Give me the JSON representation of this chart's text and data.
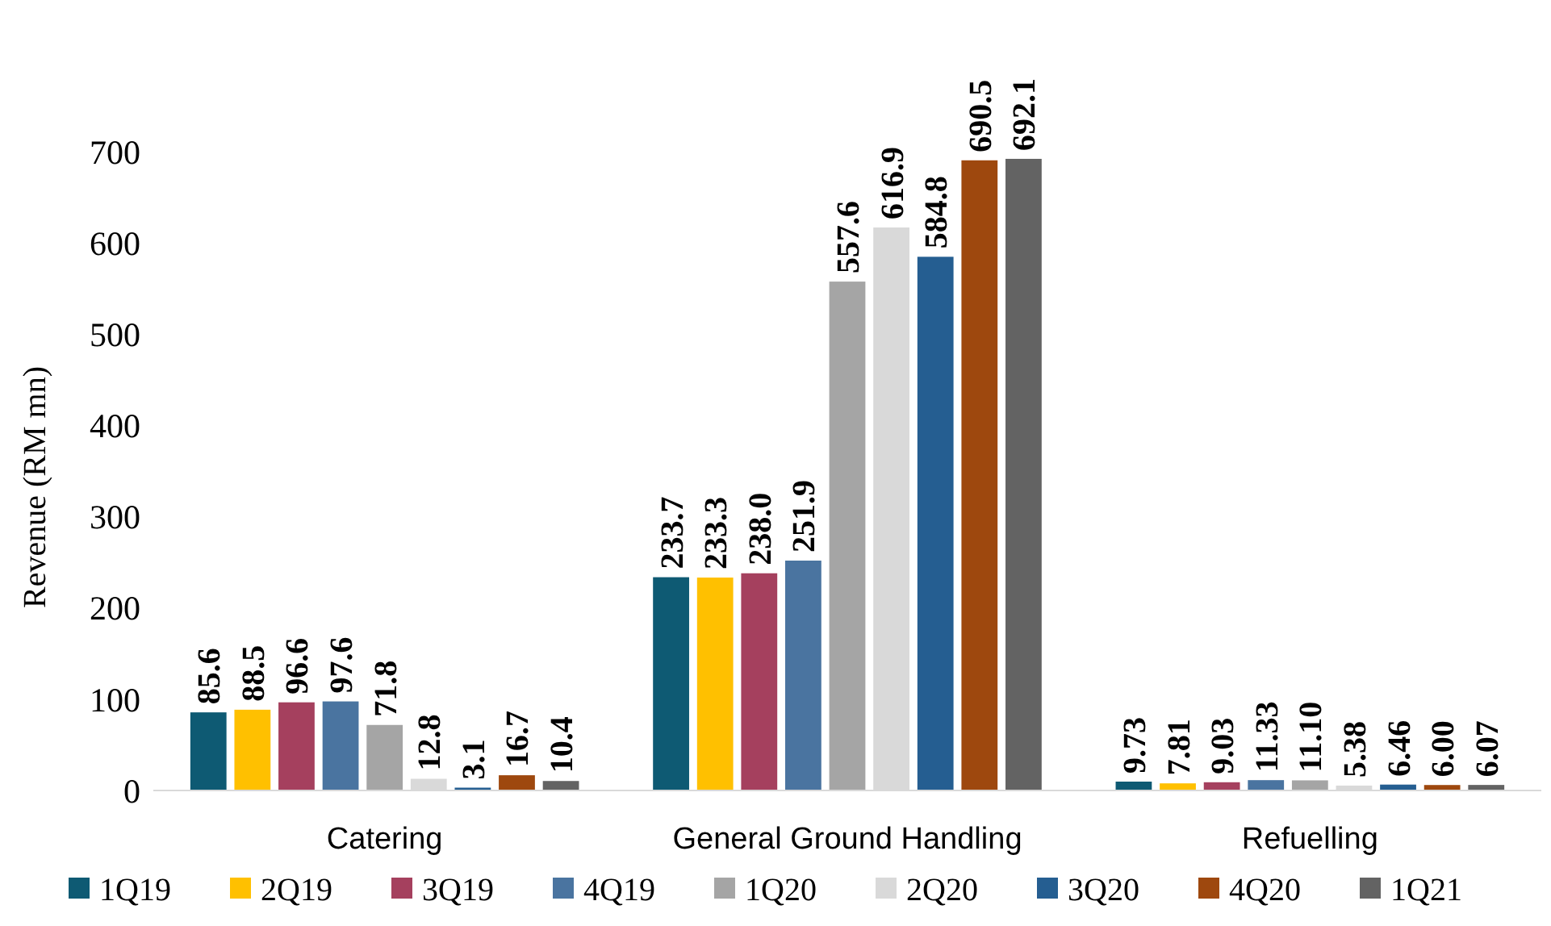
{
  "chart_data": {
    "type": "bar",
    "ylabel": "Revenue (RM mn)",
    "categories": [
      "Catering",
      "General Ground Handling",
      "Refuelling"
    ],
    "ylim": [
      0,
      700
    ],
    "yticks": [
      0,
      100,
      200,
      300,
      400,
      500,
      600,
      700
    ],
    "grid": false,
    "legend": "bottom",
    "series": [
      {
        "name": "1Q19",
        "color": "#0e5a73",
        "values": [
          85.6,
          233.7,
          9.73
        ],
        "value_labels": [
          "85.6",
          "233.7",
          "9.73"
        ]
      },
      {
        "name": "2Q19",
        "color": "#ffc000",
        "values": [
          88.5,
          233.3,
          7.81
        ],
        "value_labels": [
          "88.5",
          "233.3",
          "7.81"
        ]
      },
      {
        "name": "3Q19",
        "color": "#a5405e",
        "values": [
          96.6,
          238.0,
          9.03
        ],
        "value_labels": [
          "96.6",
          "238.0",
          "9.03"
        ]
      },
      {
        "name": "4Q19",
        "color": "#4a74a0",
        "values": [
          97.6,
          251.9,
          11.33
        ],
        "value_labels": [
          "97.6",
          "251.9",
          "11.33"
        ]
      },
      {
        "name": "1Q20",
        "color": "#a5a5a5",
        "values": [
          71.8,
          557.6,
          11.1
        ],
        "value_labels": [
          "71.8",
          "557.6",
          "11.10"
        ]
      },
      {
        "name": "2Q20",
        "color": "#d9d9d9",
        "values": [
          12.8,
          616.9,
          5.38
        ],
        "value_labels": [
          "12.8",
          "616.9",
          "5.38"
        ]
      },
      {
        "name": "3Q20",
        "color": "#255e91",
        "values": [
          3.1,
          584.8,
          6.46
        ],
        "value_labels": [
          "3.1",
          "584.8",
          "6.46"
        ]
      },
      {
        "name": "4Q20",
        "color": "#9e480e",
        "values": [
          16.7,
          690.5,
          6.0
        ],
        "value_labels": [
          "16.7",
          "690.5",
          "6.00"
        ]
      },
      {
        "name": "1Q21",
        "color": "#636363",
        "values": [
          10.4,
          692.1,
          6.07
        ],
        "value_labels": [
          "10.4",
          "692.1",
          "6.07"
        ]
      }
    ]
  }
}
